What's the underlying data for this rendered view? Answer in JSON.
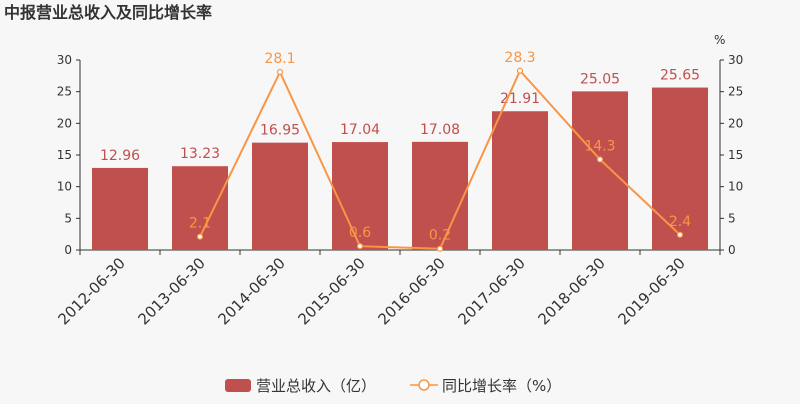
{
  "chart_data": {
    "type": "bar",
    "title": "中报营业总收入及同比增长率",
    "categories": [
      "2012-06-30",
      "2013-06-30",
      "2014-06-30",
      "2015-06-30",
      "2016-06-30",
      "2017-06-30",
      "2018-06-30",
      "2019-06-30"
    ],
    "series": [
      {
        "name": "营业总收入（亿）",
        "type": "bar",
        "axis": "left",
        "color": "#c0504d",
        "values": [
          12.96,
          13.23,
          16.95,
          17.04,
          17.08,
          21.91,
          25.05,
          25.65
        ],
        "labels": [
          "12.96",
          "13.23",
          "16.95",
          "17.04",
          "17.08",
          "21.91",
          "25.05",
          "25.65"
        ]
      },
      {
        "name": "同比增长率（%）",
        "type": "line",
        "axis": "right",
        "color": "#f79646",
        "values": [
          null,
          2.1,
          28.1,
          0.6,
          0.2,
          28.3,
          14.3,
          2.4
        ],
        "labels": [
          "",
          "2.1",
          "28.1",
          "0.6",
          "0.2",
          "28.3",
          "14.3",
          "2.4"
        ]
      }
    ],
    "y_left": {
      "ylim": [
        0,
        30
      ],
      "ticks": [
        "0",
        "5",
        "10",
        "15",
        "20",
        "25",
        "30"
      ]
    },
    "y_right": {
      "ylim": [
        0,
        30
      ],
      "unit": "%",
      "ticks": [
        "0",
        "5",
        "10",
        "15",
        "20",
        "25",
        "30"
      ]
    },
    "grid": false,
    "legend_position": "bottom-center"
  }
}
